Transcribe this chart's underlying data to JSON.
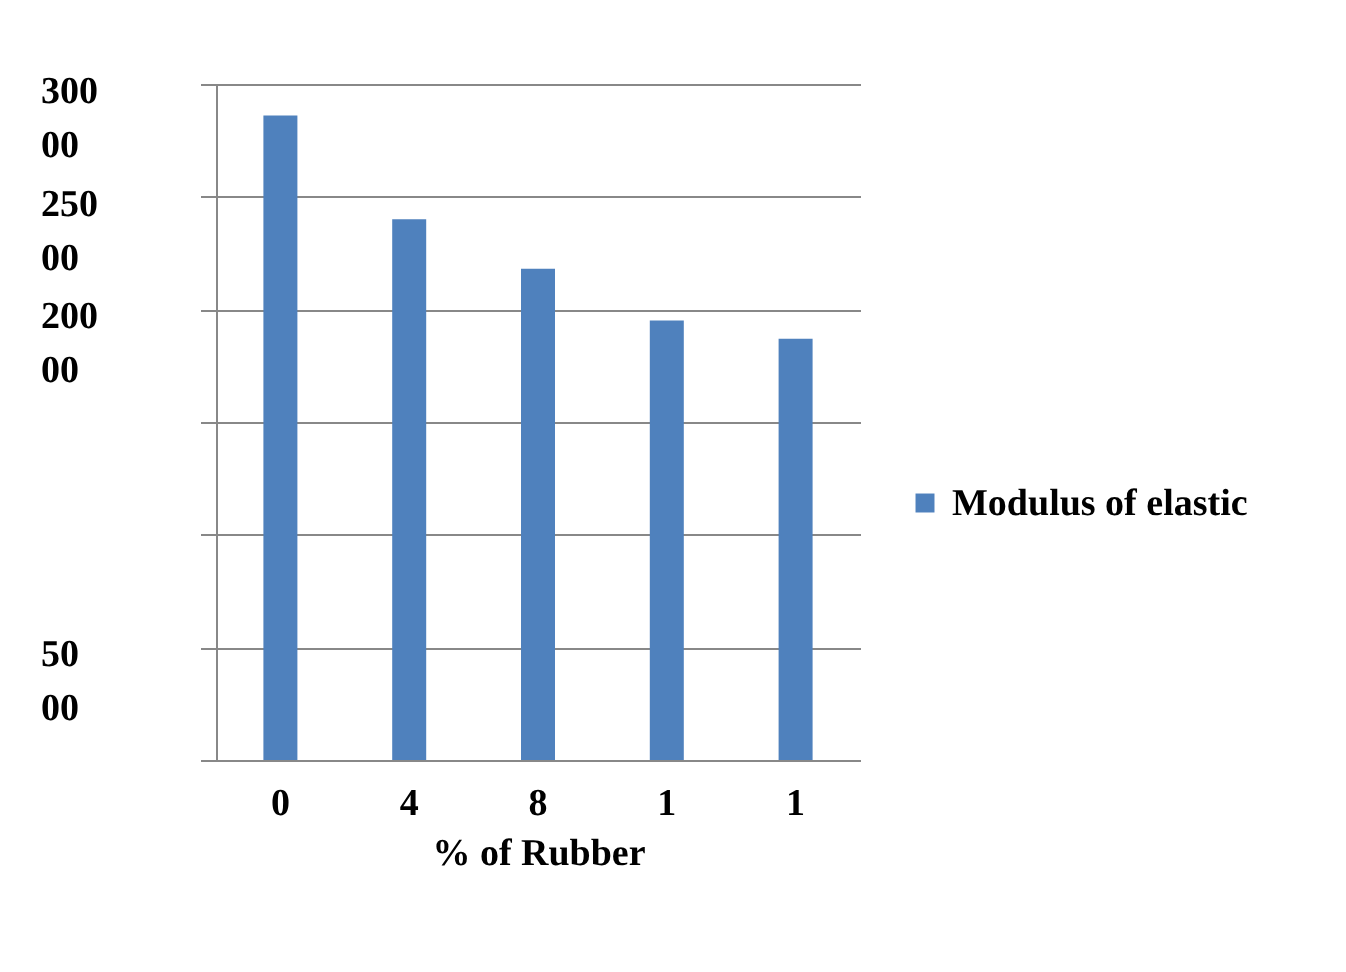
{
  "chart_data": {
    "type": "bar",
    "xlabel": "% of Rubber",
    "categories": [
      "0",
      "4",
      "8",
      "1",
      "1"
    ],
    "series": [
      {
        "name": "Modulus of elastic",
        "color": "#4f81bd",
        "values": [
          28600,
          24000,
          21800,
          19500,
          18700
        ]
      }
    ],
    "ylim": [
      0,
      30000
    ],
    "yticks": [
      {
        "value": 0,
        "label": null
      },
      5000,
      {
        "value": 10000,
        "label": null
      },
      {
        "value": 15000,
        "label": null
      },
      20000,
      25000,
      30000
    ],
    "grid": "y",
    "legend": "right"
  }
}
